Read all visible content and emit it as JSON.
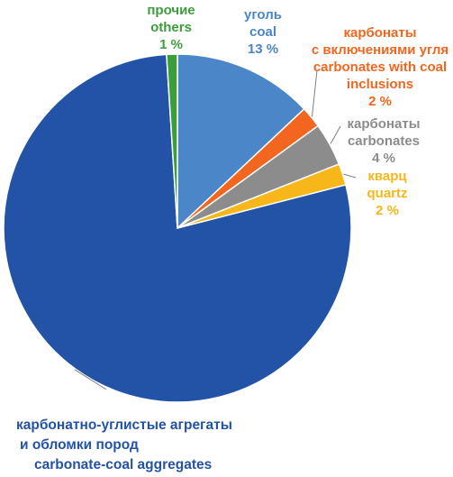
{
  "chart_data": {
    "type": "pie",
    "title": "",
    "start_angle_deg": 0,
    "direction": "clockwise",
    "slices": [
      {
        "key": "coal",
        "lines": [
          "уголь",
          "coal",
          "13 %"
        ],
        "value": 13,
        "color": "#4a86c8"
      },
      {
        "key": "carb-coal",
        "lines": [
          "карбонаты",
          "с включениями угля",
          "carbonates with coal",
          "inclusions",
          "2 %"
        ],
        "value": 2,
        "color": "#f2661f"
      },
      {
        "key": "carbonates",
        "lines": [
          "карбонаты",
          "carbonates",
          "4 %"
        ],
        "value": 4,
        "color": "#8c8c8c"
      },
      {
        "key": "quartz",
        "lines": [
          "кварц",
          "quartz",
          "2 %"
        ],
        "value": 2,
        "color": "#f7b619"
      },
      {
        "key": "aggregates",
        "lines": [
          "карбонатно-углистые агрегаты",
          "и обломки пород",
          "carbonate-coal aggregates"
        ],
        "value": 78,
        "color": "#2353a6"
      },
      {
        "key": "others",
        "lines": [
          "прочие",
          "others",
          "1 %"
        ],
        "value": 1,
        "color": "#3c9e3a"
      }
    ]
  }
}
